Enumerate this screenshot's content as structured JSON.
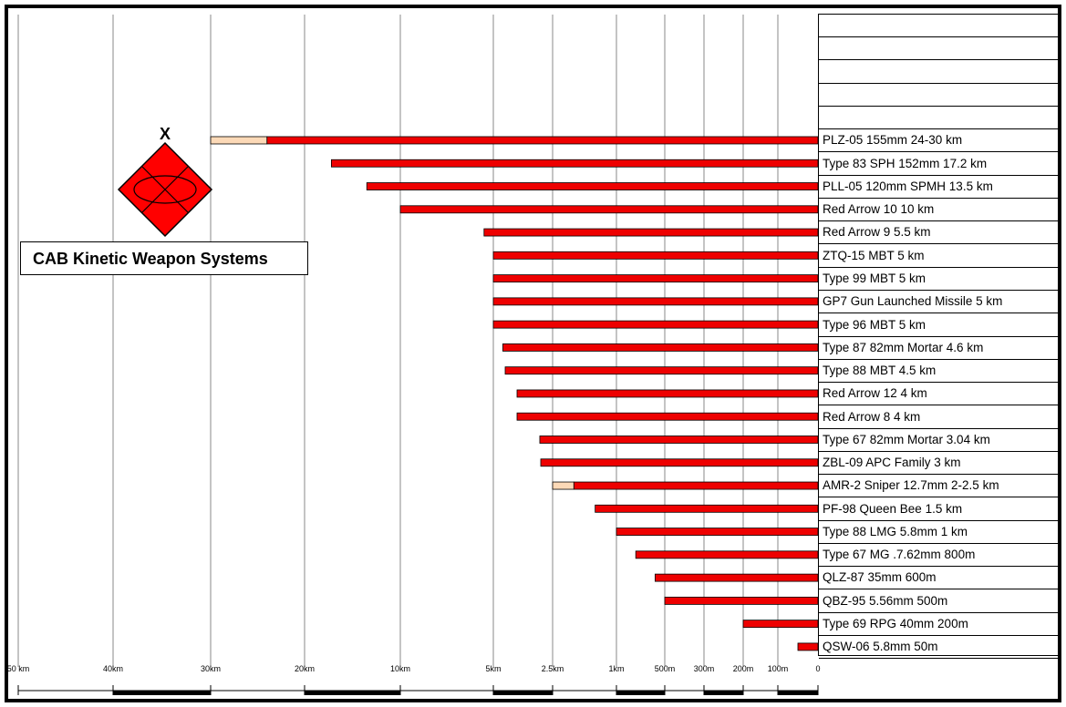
{
  "title": "CAB Kinetic Weapon Systems",
  "symbol": {
    "echelon_mark": "X",
    "icon": "red-diamond-armored-unit-symbol",
    "fill": "#ff0000"
  },
  "colors": {
    "bar": "#ee0000",
    "extended_range": "#fcd9b7",
    "bar_outline": "#000000"
  },
  "chart_data": {
    "type": "bar",
    "orientation": "horizontal",
    "title": "CAB Kinetic Weapon Systems",
    "scale": "piecewise",
    "x_ticks": [
      {
        "label": "50 km",
        "meters": 50000
      },
      {
        "label": "40km",
        "meters": 40000
      },
      {
        "label": "30km",
        "meters": 30000
      },
      {
        "label": "20km",
        "meters": 20000
      },
      {
        "label": "10km",
        "meters": 10000
      },
      {
        "label": "5km",
        "meters": 5000
      },
      {
        "label": "2.5km",
        "meters": 2500
      },
      {
        "label": "1km",
        "meters": 1000
      },
      {
        "label": "500m",
        "meters": 500
      },
      {
        "label": "300m",
        "meters": 300
      },
      {
        "label": "200m",
        "meters": 200
      },
      {
        "label": "100m",
        "meters": 100
      },
      {
        "label": "0",
        "meters": 0
      }
    ],
    "empty_rows": 5,
    "series": [
      {
        "label": "PLZ-05 155mm  24-30 km",
        "min_m": 24000,
        "max_m": 30000
      },
      {
        "label": "Type 83 SPH 152mm  17.2 km",
        "min_m": 17200,
        "max_m": 17200
      },
      {
        "label": "PLL-05 120mm SPMH 13.5 km",
        "min_m": 13500,
        "max_m": 13500
      },
      {
        "label": "Red Arrow 10   10 km",
        "min_m": 10000,
        "max_m": 10000
      },
      {
        "label": "Red Arrow 9   5.5 km",
        "min_m": 5500,
        "max_m": 5500
      },
      {
        "label": "ZTQ-15 MBT  5 km",
        "min_m": 5000,
        "max_m": 5000
      },
      {
        "label": "Type 99 MBT  5 km",
        "min_m": 5000,
        "max_m": 5000
      },
      {
        "label": "GP7 Gun Launched Missile  5 km",
        "min_m": 5000,
        "max_m": 5000
      },
      {
        "label": "Type 96 MBT  5 km",
        "min_m": 5000,
        "max_m": 5000
      },
      {
        "label": "Type 87 82mm Mortar  4.6 km",
        "min_m": 4600,
        "max_m": 4600
      },
      {
        "label": "Type 88 MBT  4.5 km",
        "min_m": 4500,
        "max_m": 4500
      },
      {
        "label": "Red Arrow 12   4 km",
        "min_m": 4000,
        "max_m": 4000
      },
      {
        "label": "Red Arrow 8  4 km",
        "min_m": 4000,
        "max_m": 4000
      },
      {
        "label": "Type 67 82mm Mortar  3.04 km",
        "min_m": 3040,
        "max_m": 3040
      },
      {
        "label": "ZBL-09 APC Family  3 km",
        "min_m": 3000,
        "max_m": 3000
      },
      {
        "label": "AMR-2 Sniper 12.7mm  2-2.5 km",
        "min_m": 2000,
        "max_m": 2500
      },
      {
        "label": "PF-98 Queen Bee   1.5 km",
        "min_m": 1500,
        "max_m": 1500
      },
      {
        "label": "Type 88 LMG 5.8mm  1 km",
        "min_m": 1000,
        "max_m": 1000
      },
      {
        "label": "Type 67 MG .7.62mm    800m",
        "min_m": 800,
        "max_m": 800
      },
      {
        "label": "QLZ-87 35mm    600m",
        "min_m": 600,
        "max_m": 600
      },
      {
        "label": "QBZ-95 5.56mm    500m",
        "min_m": 500,
        "max_m": 500
      },
      {
        "label": "Type 69 RPG  40mm    200m",
        "min_m": 200,
        "max_m": 200
      },
      {
        "label": "QSW-06 5.8mm    50m",
        "min_m": 50,
        "max_m": 50
      }
    ]
  }
}
